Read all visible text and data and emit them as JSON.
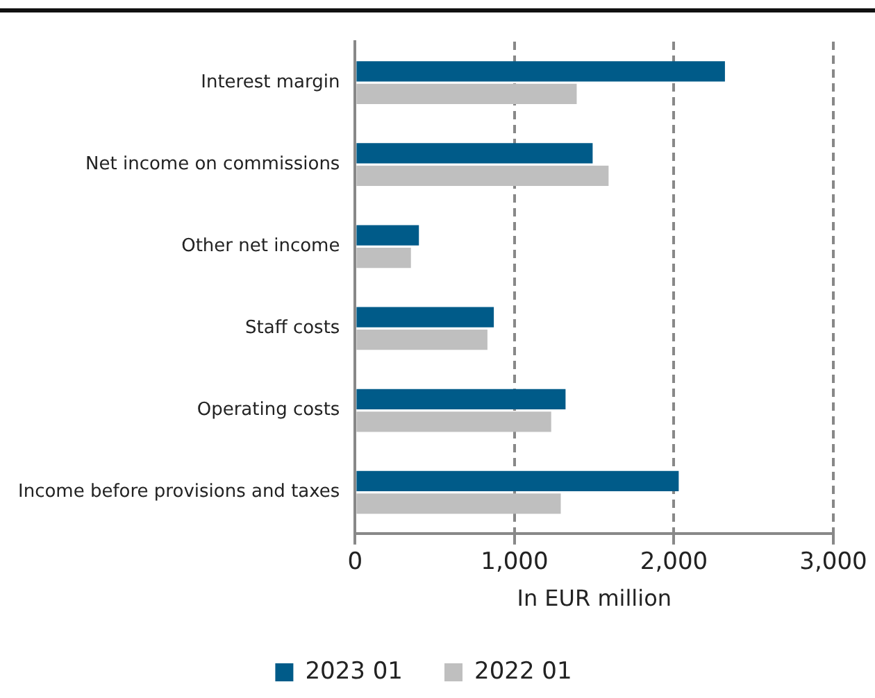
{
  "chart_data": {
    "type": "bar",
    "orientation": "horizontal",
    "categories": [
      "Interest margin",
      "Net income on commissions",
      "Other net income",
      "Staff costs",
      "Operating costs",
      "Income before provisions and taxes"
    ],
    "series": [
      {
        "name": "2023 01",
        "color": "#005b89",
        "values": [
          2320,
          1490,
          400,
          870,
          1320,
          2030
        ]
      },
      {
        "name": "2022 01",
        "color": "#bfbfbf",
        "values": [
          1390,
          1590,
          350,
          830,
          1230,
          1290
        ]
      }
    ],
    "xlabel": "In EUR million",
    "xlim": [
      0,
      3000
    ],
    "xticks": [
      {
        "value": 0,
        "label": "0"
      },
      {
        "value": 1000,
        "label": "1,000"
      },
      {
        "value": 2000,
        "label": "2,000"
      },
      {
        "value": 3000,
        "label": "3,000"
      }
    ],
    "grid": "x",
    "legend": "bottom"
  }
}
